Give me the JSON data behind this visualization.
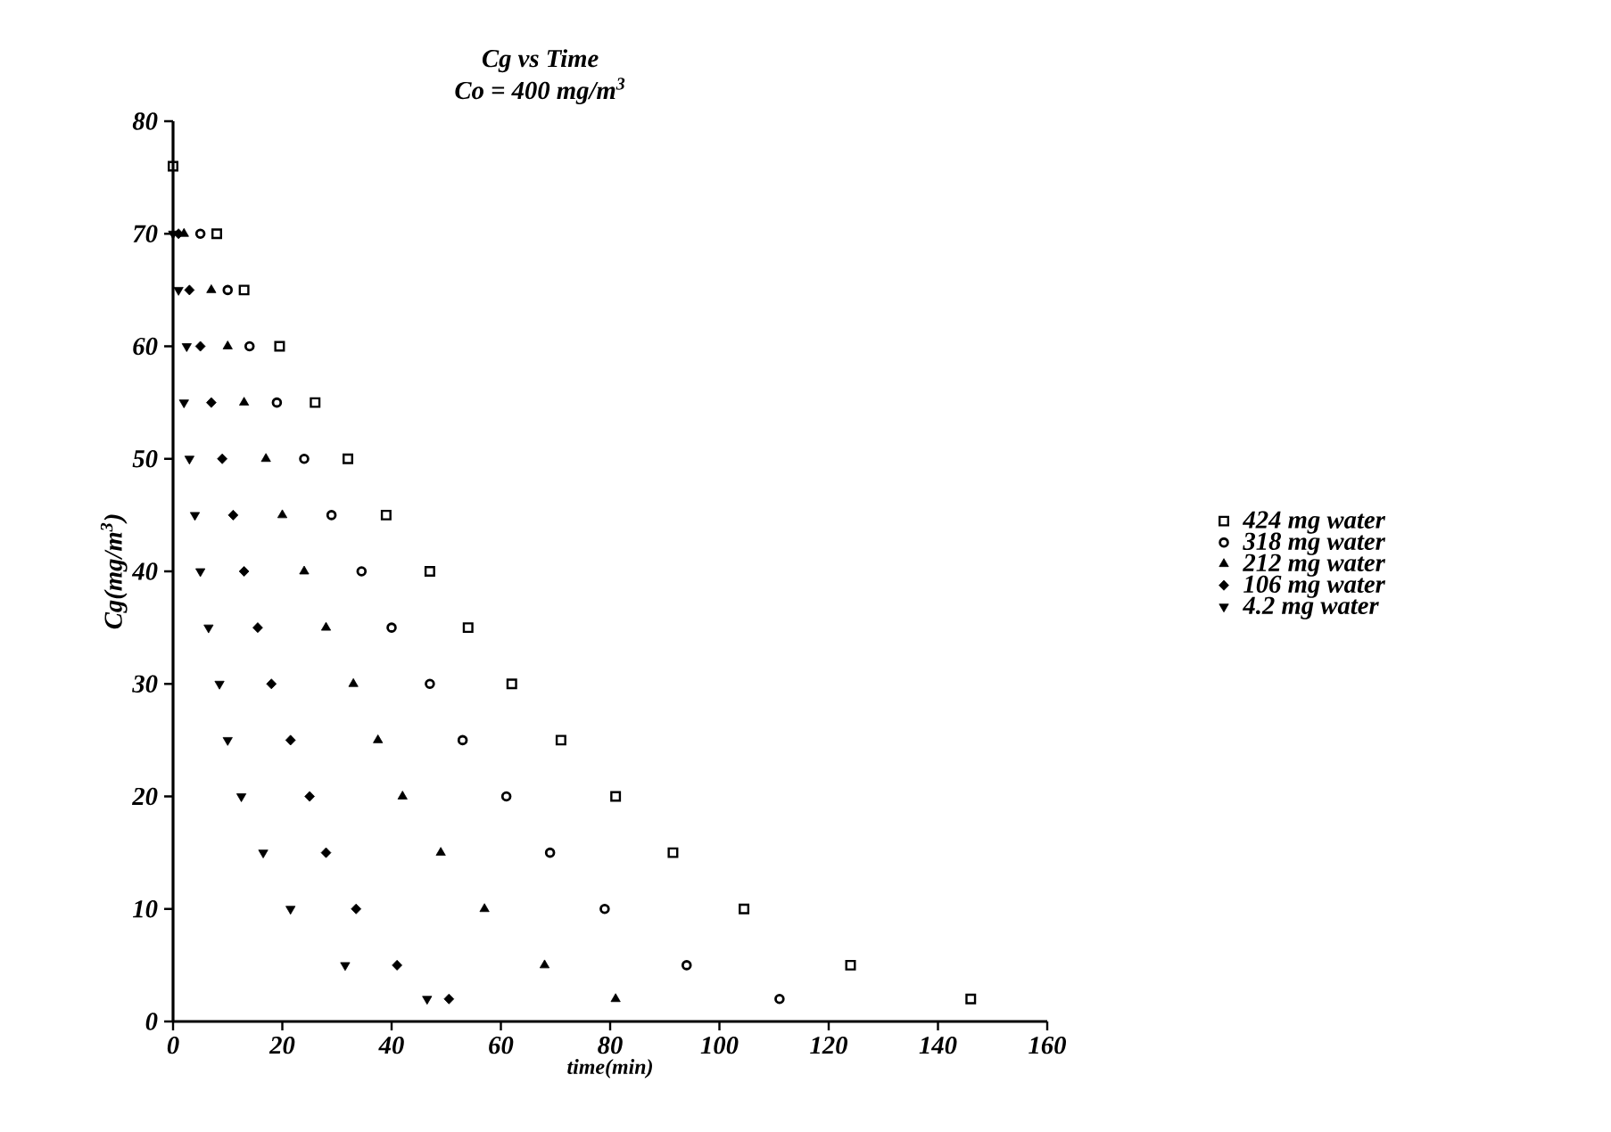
{
  "chart_data": {
    "type": "scatter",
    "title": "Cg vs Time",
    "subtitle": "Co = 400 mg/m$^{3}$",
    "xlabel": "time(min)",
    "ylabel": "Cg(mg/m$^{3}$)",
    "xlim": [
      0,
      160
    ],
    "ylim": [
      0,
      80
    ],
    "xticks": [
      0,
      20,
      40,
      60,
      80,
      100,
      120,
      140,
      160
    ],
    "yticks": [
      0,
      10,
      20,
      30,
      40,
      50,
      60,
      70,
      80
    ],
    "grid": false,
    "legend": "right",
    "series": [
      {
        "name": "424 mg water",
        "color": "#000000",
        "marker": "square",
        "x": [
          0,
          8,
          13,
          19.5,
          26,
          32,
          39,
          47,
          54,
          62,
          71,
          81,
          91.5,
          104.5,
          124,
          146
        ],
        "values": [
          76,
          70,
          65,
          60,
          55,
          50,
          45,
          40,
          35,
          30,
          25,
          20,
          15,
          10,
          5,
          2
        ]
      },
      {
        "name": "318 mg water",
        "color": "#000000",
        "marker": "circle",
        "x": [
          5,
          10,
          14,
          19,
          24,
          29,
          34.5,
          40,
          47,
          53,
          61,
          69,
          79,
          94,
          111
        ],
        "values": [
          70,
          65,
          60,
          55,
          50,
          45,
          40,
          35,
          30,
          25,
          20,
          15,
          10,
          5,
          2
        ]
      },
      {
        "name": "212 mg water",
        "color": "#000000",
        "marker": "triangle",
        "x": [
          2,
          7,
          10,
          13,
          17,
          20,
          24,
          28,
          33,
          37.5,
          42,
          49,
          57,
          68,
          81
        ],
        "values": [
          70,
          65,
          60,
          55,
          50,
          45,
          40,
          35,
          30,
          25,
          20,
          15,
          10,
          5,
          2
        ]
      },
      {
        "name": "106 mg water",
        "color": "#000000",
        "marker": "diamond",
        "x": [
          1,
          3,
          5,
          7,
          9,
          11,
          13,
          15.5,
          18,
          21.5,
          25,
          28,
          33.5,
          41,
          50.5
        ],
        "values": [
          70,
          65,
          60,
          55,
          50,
          45,
          40,
          35,
          30,
          25,
          20,
          15,
          10,
          5,
          2
        ]
      },
      {
        "name": "4.2 mg water",
        "color": "#000000",
        "marker": "triangle-down",
        "x": [
          0,
          1,
          2.5,
          2,
          3,
          4,
          5,
          6.5,
          8.5,
          10,
          12.5,
          16.5,
          21.5,
          31.5,
          46.5
        ],
        "values": [
          70,
          65,
          60,
          55,
          50,
          45,
          40,
          35,
          30,
          25,
          20,
          15,
          10,
          5,
          2
        ]
      }
    ]
  }
}
